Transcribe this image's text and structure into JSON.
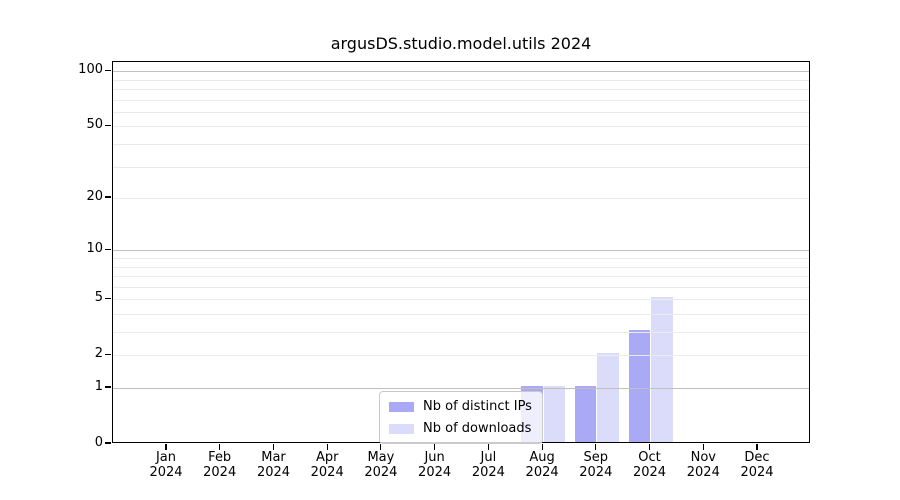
{
  "chart_data": {
    "type": "bar",
    "title": "argusDS.studio.model.utils 2024",
    "year": "2024",
    "categories": [
      "Jan",
      "Feb",
      "Mar",
      "Apr",
      "May",
      "Jun",
      "Jul",
      "Aug",
      "Sep",
      "Oct",
      "Nov",
      "Dec"
    ],
    "series": [
      {
        "name": "Nb of distinct IPs",
        "color": "#a9a9f6",
        "values": [
          0,
          0,
          0,
          0,
          0,
          0,
          0,
          1,
          1,
          3,
          0,
          0
        ]
      },
      {
        "name": "Nb of downloads",
        "color": "#dbdbfa",
        "values": [
          0,
          0,
          0,
          0,
          0,
          0,
          0,
          1,
          2,
          5,
          0,
          0
        ]
      }
    ],
    "yscale": "log1p",
    "ylim": [
      0,
      112
    ],
    "yticks": [
      0,
      1,
      2,
      5,
      10,
      20,
      50,
      100
    ],
    "grid_major": [
      1,
      10,
      100
    ],
    "grid_minor": [
      2,
      3,
      4,
      5,
      6,
      7,
      8,
      9,
      20,
      30,
      40,
      50,
      60,
      70,
      80,
      90
    ],
    "grid": "horizontal",
    "legend_position": "lower center inside plot",
    "colors": {
      "spine": "#000000",
      "grid_major": "#c0c0c0",
      "grid_minor": "#ebebeb",
      "text": "#000000",
      "legend_border": "#c9c9c9"
    }
  }
}
